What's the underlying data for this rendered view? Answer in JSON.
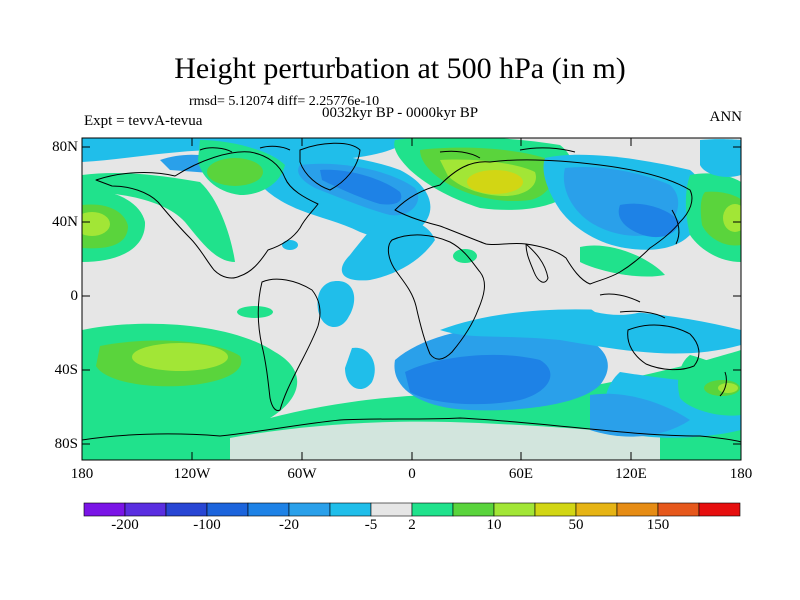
{
  "title": "Height perturbation at 500 hPa (in m)",
  "stats": "rmsd= 5.12074 diff= 2.25776e-10",
  "expt": "Expt = tevvA-tevua",
  "period": "0032kyr BP - 0000kyr BP",
  "season": "ANN",
  "lat_ticks": [
    "80N",
    "40N",
    "0",
    "40S",
    "80S"
  ],
  "lon_ticks": [
    "180",
    "120W",
    "60W",
    "0",
    "60E",
    "120E",
    "180"
  ],
  "colorbar": {
    "colors": [
      "#7a14e6",
      "#5a2ee0",
      "#2846d4",
      "#1c64dc",
      "#1e82e6",
      "#2aa0ea",
      "#20beea",
      "#e6e6e6",
      "#20e28c",
      "#5ad43c",
      "#a2e636",
      "#d2d614",
      "#e6b414",
      "#e68c14",
      "#e6581c",
      "#e60e0e"
    ],
    "labels": [
      "-200",
      "-100",
      "-20",
      "-5",
      "2",
      "10",
      "50",
      "150"
    ],
    "label_after_box": [
      1,
      3,
      5,
      7,
      8,
      10,
      12,
      14
    ]
  }
}
